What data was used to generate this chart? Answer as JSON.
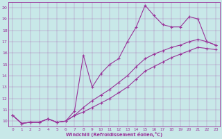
{
  "xlabel": "Windchill (Refroidissement éolien,°C)",
  "bg_color": "#c8e8e8",
  "line_color": "#993399",
  "xlim": [
    -0.5,
    23.5
  ],
  "ylim": [
    9.5,
    20.5
  ],
  "xticks": [
    0,
    1,
    2,
    3,
    4,
    5,
    6,
    7,
    8,
    9,
    10,
    11,
    12,
    13,
    14,
    15,
    16,
    17,
    18,
    19,
    20,
    21,
    22,
    23
  ],
  "yticks": [
    10,
    11,
    12,
    13,
    14,
    15,
    16,
    17,
    18,
    19,
    20
  ],
  "series1_x": [
    0,
    1,
    2,
    3,
    4,
    5,
    6,
    7,
    8,
    9,
    10,
    11,
    12,
    13,
    14,
    15,
    16,
    17,
    18,
    19,
    20,
    21,
    22,
    23
  ],
  "series1_y": [
    10.5,
    9.8,
    9.9,
    9.9,
    10.2,
    9.9,
    10.0,
    10.9,
    15.8,
    13.0,
    14.2,
    15.0,
    15.5,
    17.0,
    18.3,
    20.2,
    19.3,
    18.5,
    18.3,
    18.3,
    19.2,
    19.0,
    17.0,
    16.7
  ],
  "series2_x": [
    0,
    1,
    2,
    3,
    4,
    5,
    6,
    7,
    8,
    9,
    10,
    11,
    12,
    13,
    14,
    15,
    16,
    17,
    18,
    19,
    20,
    21,
    22,
    23
  ],
  "series2_y": [
    10.5,
    9.8,
    9.9,
    9.9,
    10.2,
    9.9,
    10.0,
    10.5,
    11.2,
    11.8,
    12.3,
    12.8,
    13.4,
    14.0,
    14.8,
    15.5,
    15.9,
    16.2,
    16.5,
    16.7,
    17.0,
    17.2,
    17.0,
    16.7
  ],
  "series3_x": [
    0,
    1,
    2,
    3,
    4,
    5,
    6,
    7,
    8,
    9,
    10,
    11,
    12,
    13,
    14,
    15,
    16,
    17,
    18,
    19,
    20,
    21,
    22,
    23
  ],
  "series3_y": [
    10.5,
    9.8,
    9.9,
    9.9,
    10.2,
    9.9,
    10.0,
    10.5,
    10.8,
    11.2,
    11.6,
    12.0,
    12.5,
    13.0,
    13.7,
    14.4,
    14.8,
    15.2,
    15.6,
    15.9,
    16.2,
    16.5,
    16.4,
    16.3
  ]
}
